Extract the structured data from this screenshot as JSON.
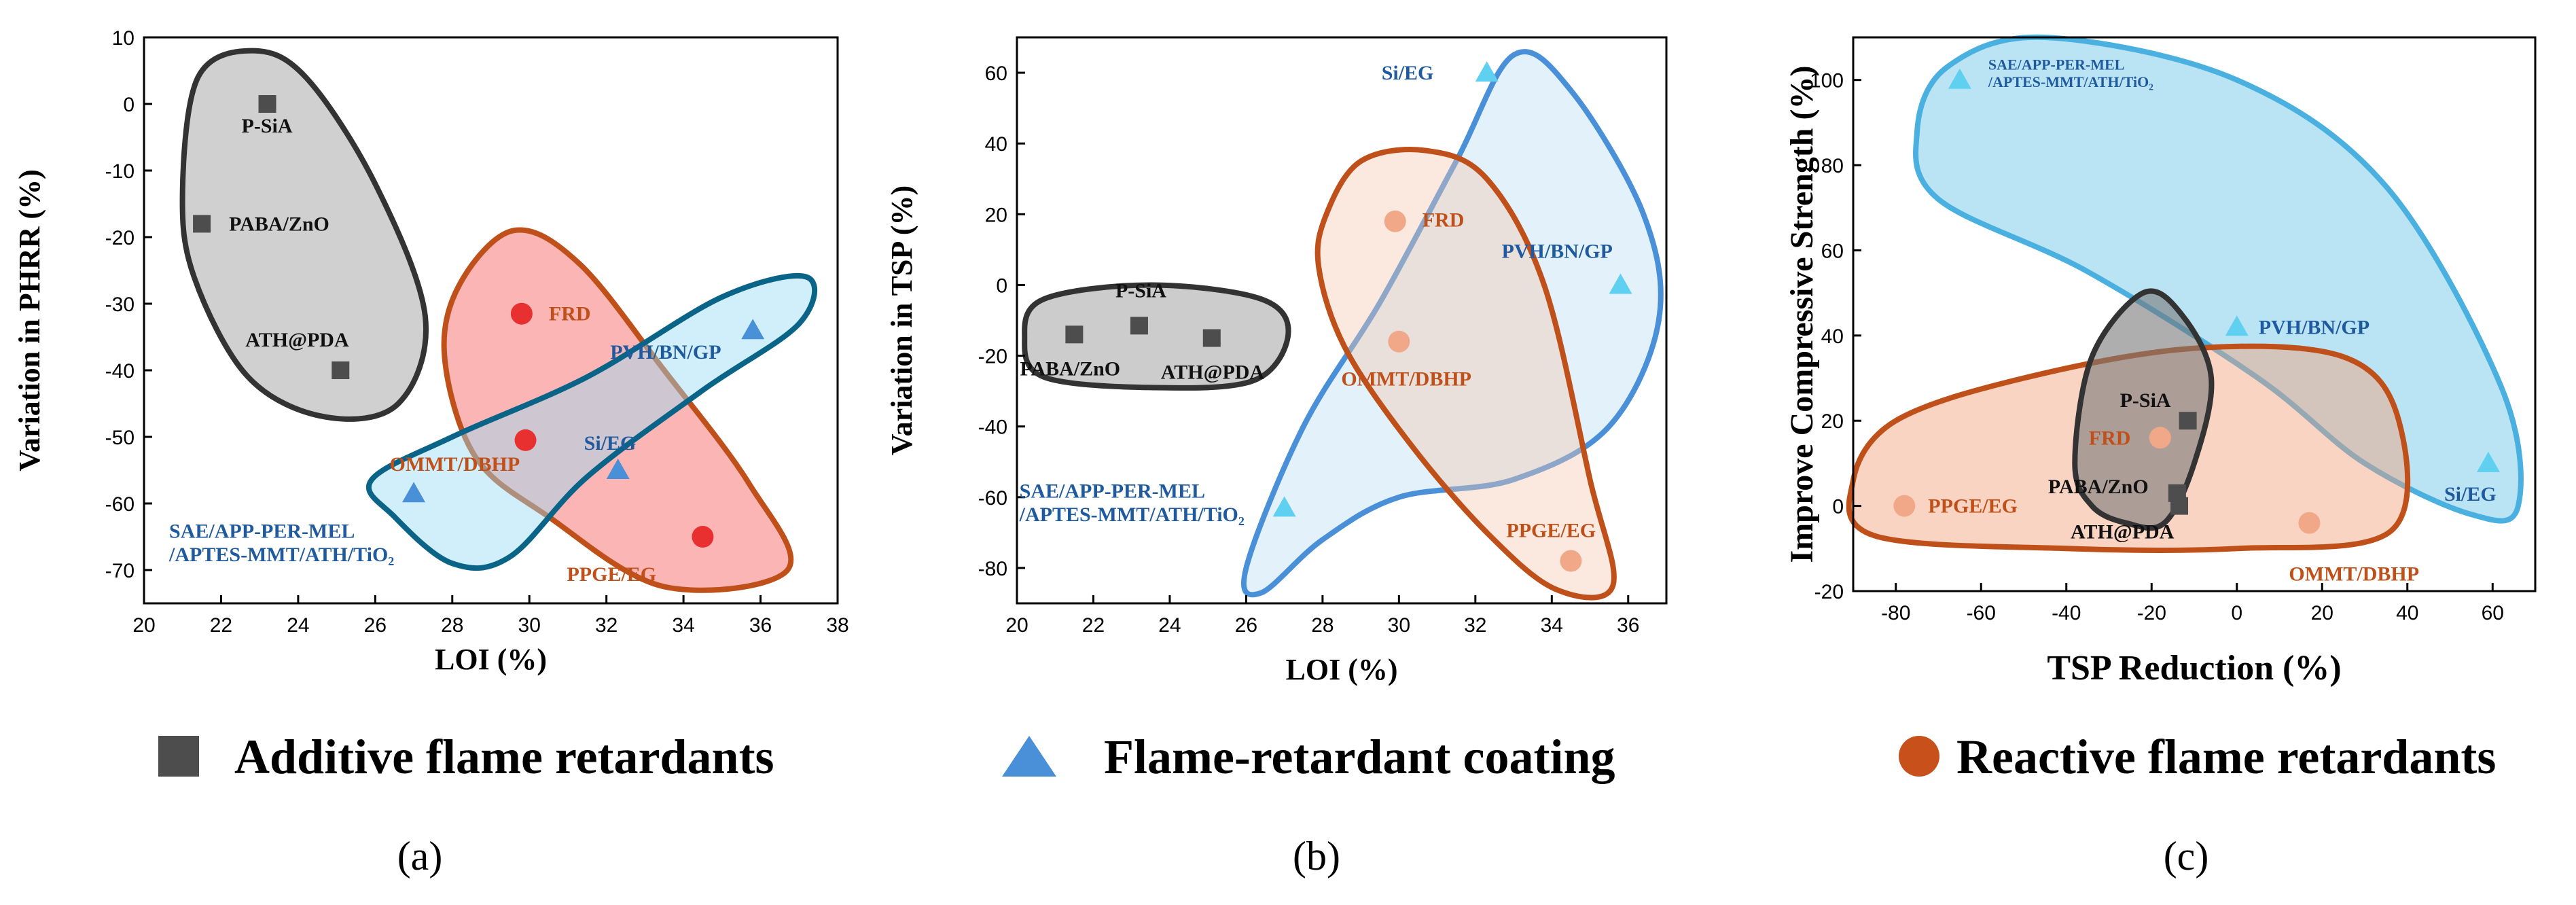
{
  "colors": {
    "additive": "#4d4d4d",
    "coating": "#4a90d9",
    "reactive": "#c8501a",
    "label_dark": "#111111",
    "label_blue": "#1f5a9e",
    "label_orange": "#c0501a"
  },
  "legend": [
    {
      "label": "Additive flame retardants",
      "marker": "square",
      "color": "#4d4d4d"
    },
    {
      "label": "Flame-retardant coating",
      "marker": "triangle",
      "color": "#4a90d9"
    },
    {
      "label": "Reactive flame retardants",
      "marker": "circle",
      "color": "#c8501a"
    }
  ],
  "chart_data": [
    {
      "type": "scatter",
      "panel": "(a)",
      "xlabel": "LOI (%)",
      "ylabel": "Variation in PHRR (%)",
      "xlim": [
        20,
        38
      ],
      "ylim": [
        -75,
        10
      ],
      "xticks": [
        20,
        22,
        24,
        26,
        28,
        30,
        32,
        34,
        36,
        38
      ],
      "yticks": [
        10,
        0,
        -10,
        -20,
        -30,
        -40,
        -50,
        -60,
        -70
      ],
      "points": [
        {
          "label": "P-SiA",
          "group": "additive",
          "x": 23.2,
          "y": 0
        },
        {
          "label": "PABA/ZnO",
          "group": "additive",
          "x": 21.5,
          "y": -18
        },
        {
          "label": "ATH@PDA",
          "group": "additive",
          "x": 25.1,
          "y": -40
        },
        {
          "label": "FRD",
          "group": "reactive",
          "x": 29.8,
          "y": -31.5
        },
        {
          "label": "OMMT/DBHP",
          "group": "reactive",
          "x": 29.9,
          "y": -50.5
        },
        {
          "label": "PPGE/EG",
          "group": "reactive",
          "x": 34.5,
          "y": -65
        },
        {
          "label": "PVH/BN/GP",
          "group": "coating",
          "x": 35.8,
          "y": -34
        },
        {
          "label": "Si/EG",
          "group": "coating",
          "x": 32.3,
          "y": -55
        },
        {
          "label": "SAE/APP-PER-MEL /APTES-MMT/ATH/TiO₂",
          "group": "coating",
          "x": 27.0,
          "y": -58.5
        }
      ]
    },
    {
      "type": "scatter",
      "panel": "(b)",
      "xlabel": "LOI (%)",
      "ylabel": "Variation  in TSP (%)",
      "xlim": [
        20,
        37
      ],
      "ylim": [
        -90,
        70
      ],
      "xticks": [
        20,
        22,
        24,
        26,
        28,
        30,
        32,
        34,
        36
      ],
      "yticks": [
        60,
        40,
        20,
        0,
        -20,
        -40,
        -60,
        -80
      ],
      "points": [
        {
          "label": "P-SiA",
          "group": "additive",
          "x": 23.2,
          "y": -11.5
        },
        {
          "label": "PABA/ZnO",
          "group": "additive",
          "x": 21.5,
          "y": -14
        },
        {
          "label": "ATH@PDA",
          "group": "additive",
          "x": 25.1,
          "y": -15
        },
        {
          "label": "FRD",
          "group": "reactive",
          "x": 29.9,
          "y": 18
        },
        {
          "label": "OMMT/DBHP",
          "group": "reactive",
          "x": 30.0,
          "y": -16
        },
        {
          "label": "PPGE/EG",
          "group": "reactive",
          "x": 34.5,
          "y": -78
        },
        {
          "label": "Si/EG",
          "group": "coating",
          "x": 32.3,
          "y": 60
        },
        {
          "label": "PVH/BN/GP",
          "group": "coating",
          "x": 35.8,
          "y": 0
        },
        {
          "label": "SAE/APP-PER-MEL /APTES-MMT/ATH/TiO₂",
          "group": "coating",
          "x": 27.0,
          "y": -63
        }
      ]
    },
    {
      "type": "scatter",
      "panel": "(c)",
      "xlabel": "TSP Reduction (%)",
      "ylabel": "Improve Compressive Strength (%)",
      "xlim": [
        -90,
        70
      ],
      "ylim": [
        -20,
        110
      ],
      "xticks": [
        -80,
        -60,
        -40,
        -20,
        0,
        20,
        40,
        60
      ],
      "yticks": [
        100,
        80,
        60,
        40,
        20,
        0,
        -20
      ],
      "points": [
        {
          "label": "P-SiA",
          "group": "additive",
          "x": -11.5,
          "y": 20
        },
        {
          "label": "PABA/ZnO",
          "group": "additive",
          "x": -14,
          "y": 3
        },
        {
          "label": "ATH@PDA",
          "group": "additive",
          "x": -13.5,
          "y": 0
        },
        {
          "label": "FRD",
          "group": "reactive",
          "x": -18,
          "y": 16
        },
        {
          "label": "PPGE/EG",
          "group": "reactive",
          "x": -78,
          "y": 0
        },
        {
          "label": "OMMT/DBHP",
          "group": "reactive",
          "x": 17,
          "y": -4
        },
        {
          "label": "SAE/APP-PER-MEL /APTES-MMT/ATH/TiO₂",
          "group": "coating",
          "x": -65,
          "y": 100
        },
        {
          "label": "PVH/BN/GP",
          "group": "coating",
          "x": 0,
          "y": 42
        },
        {
          "label": "Si/EG",
          "group": "coating",
          "x": 59,
          "y": 10
        }
      ]
    }
  ]
}
